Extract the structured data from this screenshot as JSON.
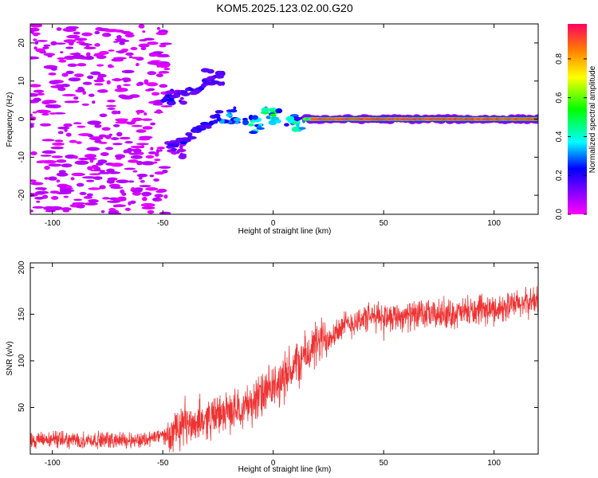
{
  "title": "KOM5.2025.123.02.00.G20",
  "chart_data": [
    {
      "type": "heatmap",
      "xlabel": "Height of straight line (km)",
      "ylabel": "Frequency (Hz)",
      "xlim": [
        -110,
        120
      ],
      "ylim": [
        -25,
        25
      ],
      "xticks": [
        -100,
        -50,
        0,
        50,
        100
      ],
      "yticks": [
        -20,
        -10,
        0,
        10,
        20
      ],
      "colorbar": {
        "label": "Normalized spectral amplitude",
        "range": [
          0,
          0.98
        ],
        "ticks": [
          0.0,
          0.2,
          0.4,
          0.6,
          0.8
        ],
        "colormap": "rainbow (magenta-blue-cyan-green-yellow-red)"
      },
      "features": [
        {
          "x_range": [
            -110,
            -50
          ],
          "description": "scattered low-amplitude noise spread over -25 to 25 Hz",
          "amplitude": 0.05
        },
        {
          "x": -45,
          "freq": 6,
          "amplitude": 0.25
        },
        {
          "x": -45,
          "freq": -8,
          "amplitude": 0.15
        },
        {
          "x": -27,
          "freq": 11,
          "amplitude": 0.2
        },
        {
          "x": -20,
          "freq": 1,
          "amplitude": 0.35
        },
        {
          "x": -10,
          "freq": -1.5,
          "amplitude": 0.45
        },
        {
          "x": 0,
          "freq": 1,
          "amplitude": 0.55
        },
        {
          "x": 10,
          "freq": -1,
          "amplitude": 0.45
        },
        {
          "x_range": [
            15,
            120
          ],
          "freq": 0,
          "description": "continuous band near 0 Hz",
          "amplitude": 0.98
        }
      ]
    },
    {
      "type": "line",
      "xlabel": "Height of straight line (km)",
      "ylabel": "SNR (v/v)",
      "xlim": [
        -110,
        120
      ],
      "ylim": [
        0,
        205
      ],
      "xticks": [
        -100,
        -50,
        0,
        50,
        100
      ],
      "yticks": [
        50,
        100,
        150,
        200
      ],
      "color": "#ee3333",
      "trend": {
        "x": [
          -110,
          -60,
          -45,
          -40,
          -30,
          -20,
          -10,
          0,
          10,
          20,
          30,
          40,
          50,
          60,
          80,
          100,
          120
        ],
        "y": [
          15,
          15,
          22,
          30,
          38,
          45,
          55,
          70,
          95,
          118,
          135,
          145,
          148,
          148,
          150,
          155,
          165
        ]
      }
    }
  ]
}
